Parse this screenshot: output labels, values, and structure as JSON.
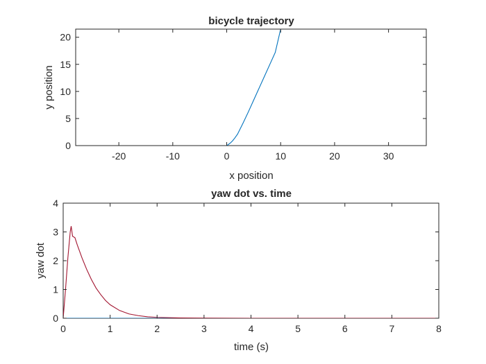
{
  "chart_data": [
    {
      "type": "line",
      "title": "bicycle trajectory",
      "xlabel": "x position",
      "ylabel": "y position",
      "xlim": [
        -28,
        37
      ],
      "ylim": [
        0,
        21.5
      ],
      "xticks": [
        -20,
        -10,
        0,
        10,
        20,
        30
      ],
      "yticks": [
        0,
        5,
        10,
        15,
        20
      ],
      "grid": false,
      "series": [
        {
          "color": "#0072BD",
          "x": [
            0,
            0.3,
            0.7,
            1.1,
            1.5,
            2.0,
            3.0,
            4.0,
            5.0,
            6.0,
            7.0,
            8.0,
            9.0,
            10.0
          ],
          "y": [
            0,
            0.2,
            0.5,
            0.9,
            1.4,
            2.1,
            4.1,
            6.2,
            8.4,
            10.6,
            12.8,
            15.0,
            17.2,
            21.5
          ]
        }
      ]
    },
    {
      "type": "line",
      "title": "yaw dot vs. time",
      "xlabel": "time (s)",
      "ylabel": "yaw dot",
      "xlim": [
        0,
        8
      ],
      "ylim": [
        0,
        4
      ],
      "xticks": [
        0,
        1,
        2,
        3,
        4,
        5,
        6,
        7,
        8
      ],
      "yticks": [
        0,
        1,
        2,
        3,
        4
      ],
      "grid": false,
      "series": [
        {
          "color": "#0072BD",
          "x": [
            0,
            8
          ],
          "y": [
            0,
            0
          ]
        },
        {
          "color": "#A2142F",
          "x": [
            0,
            0.05,
            0.1,
            0.15,
            0.17,
            0.2,
            0.25,
            0.3,
            0.4,
            0.5,
            0.6,
            0.7,
            0.8,
            0.9,
            1.0,
            1.2,
            1.4,
            1.6,
            1.8,
            2.0,
            2.5,
            3.0,
            4.0,
            5.0,
            6.0,
            7.0,
            8.0
          ],
          "y": [
            0,
            1.0,
            2.1,
            3.0,
            3.2,
            2.85,
            2.8,
            2.55,
            2.1,
            1.7,
            1.35,
            1.05,
            0.82,
            0.62,
            0.47,
            0.27,
            0.15,
            0.09,
            0.05,
            0.03,
            0.01,
            0.005,
            0,
            0,
            0,
            0,
            0
          ]
        }
      ]
    }
  ]
}
